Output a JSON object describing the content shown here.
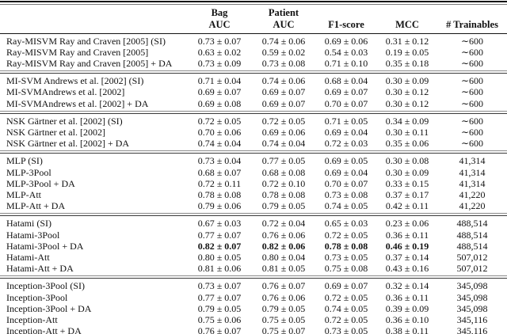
{
  "table": {
    "header": {
      "method_label": "",
      "columns": [
        {
          "line1": "Bag",
          "line2": "AUC"
        },
        {
          "line1": "Patient",
          "line2": "AUC"
        },
        {
          "line1": "",
          "line2": "F1-score"
        },
        {
          "line1": "",
          "line2": "MCC"
        },
        {
          "line1": "",
          "line2": "# Trainables"
        }
      ]
    },
    "groups": [
      {
        "rows": [
          {
            "method": "Ray-MISVM Ray and Craven [2005] (SI)",
            "bag_auc": "0.73 ± 0.07",
            "patient_auc": "0.74 ± 0.06",
            "f1": "0.69 ± 0.06",
            "mcc": "0.31 ± 0.12",
            "trainables": "∼600",
            "bold_metrics": false
          },
          {
            "method": "Ray-MISVM Ray and Craven [2005]",
            "bag_auc": "0.63 ± 0.02",
            "patient_auc": "0.59 ± 0.02",
            "f1": "0.54 ± 0.03",
            "mcc": "0.19 ± 0.05",
            "trainables": "∼600",
            "bold_metrics": false
          },
          {
            "method": "Ray-MISVM Ray and Craven [2005] + DA",
            "bag_auc": "0.73 ± 0.09",
            "patient_auc": "0.73 ± 0.08",
            "f1": "0.71 ± 0.10",
            "mcc": "0.35 ± 0.18",
            "trainables": "∼600",
            "bold_metrics": false
          }
        ]
      },
      {
        "rows": [
          {
            "method": "MI-SVM Andrews et al. [2002] (SI)",
            "bag_auc": "0.71 ± 0.04",
            "patient_auc": "0.74 ± 0.06",
            "f1": "0.68 ± 0.04",
            "mcc": "0.30 ± 0.09",
            "trainables": "∼600",
            "bold_metrics": false
          },
          {
            "method": "MI-SVMAndrews et al. [2002]",
            "bag_auc": "0.69 ± 0.07",
            "patient_auc": "0.69 ± 0.07",
            "f1": "0.69 ± 0.07",
            "mcc": "0.30 ± 0.12",
            "trainables": "∼600",
            "bold_metrics": false
          },
          {
            "method": "MI-SVMAndrews et al. [2002] + DA",
            "bag_auc": "0.69 ± 0.08",
            "patient_auc": "0.69 ± 0.07",
            "f1": "0.70 ± 0.07",
            "mcc": "0.30 ± 0.12",
            "trainables": "∼600",
            "bold_metrics": false
          }
        ]
      },
      {
        "rows": [
          {
            "method": "NSK Gärtner et al. [2002] (SI)",
            "bag_auc": "0.72 ± 0.05",
            "patient_auc": "0.72 ± 0.05",
            "f1": "0.71 ± 0.05",
            "mcc": "0.34 ± 0.09",
            "trainables": "∼600",
            "bold_metrics": false
          },
          {
            "method": "NSK Gärtner et al. [2002]",
            "bag_auc": "0.70 ± 0.06",
            "patient_auc": "0.69 ± 0.06",
            "f1": "0.69 ± 0.04",
            "mcc": "0.30 ± 0.11",
            "trainables": "∼600",
            "bold_metrics": false
          },
          {
            "method": "NSK Gärtner et al. [2002] + DA",
            "bag_auc": "0.74 ± 0.04",
            "patient_auc": "0.74 ± 0.04",
            "f1": "0.72 ± 0.03",
            "mcc": "0.35 ± 0.06",
            "trainables": "∼600",
            "bold_metrics": false
          }
        ]
      },
      {
        "rows": [
          {
            "method": "MLP (SI)",
            "bag_auc": "0.73 ± 0.04",
            "patient_auc": "0.77 ± 0.05",
            "f1": "0.69 ± 0.05",
            "mcc": "0.30 ± 0.08",
            "trainables": "41,314",
            "bold_metrics": false
          },
          {
            "method": "MLP-3Pool",
            "bag_auc": "0.68 ± 0.07",
            "patient_auc": "0.68 ± 0.08",
            "f1": "0.69 ± 0.04",
            "mcc": "0.30 ± 0.09",
            "trainables": "41,314",
            "bold_metrics": false
          },
          {
            "method": "MLP-3Pool + DA",
            "bag_auc": "0.72 ± 0.11",
            "patient_auc": "0.72 ± 0.10",
            "f1": "0.70 ± 0.07",
            "mcc": "0.33 ± 0.15",
            "trainables": "41,314",
            "bold_metrics": false
          },
          {
            "method": "MLP-Att",
            "bag_auc": "0.78 ± 0.08",
            "patient_auc": "0.78 ± 0.08",
            "f1": "0.73 ± 0.08",
            "mcc": "0.37 ± 0.17",
            "trainables": "41,220",
            "bold_metrics": false
          },
          {
            "method": "MLP-Att + DA",
            "bag_auc": "0.79 ± 0.06",
            "patient_auc": "0.79 ± 0.05",
            "f1": "0.74 ± 0.05",
            "mcc": "0.42 ± 0.11",
            "trainables": "41,220",
            "bold_metrics": false
          }
        ]
      },
      {
        "rows": [
          {
            "method": "Hatami (SI)",
            "bag_auc": "0.67 ± 0.03",
            "patient_auc": "0.72 ± 0.04",
            "f1": "0.65 ± 0.03",
            "mcc": "0.23 ± 0.06",
            "trainables": "488,514",
            "bold_metrics": false
          },
          {
            "method": "Hatami-3Pool",
            "bag_auc": "0.77 ± 0.07",
            "patient_auc": "0.76 ± 0.06",
            "f1": "0.72 ± 0.05",
            "mcc": "0.36 ± 0.11",
            "trainables": "488,514",
            "bold_metrics": false
          },
          {
            "method": "Hatami-3Pool + DA",
            "bag_auc": "0.82 ± 0.07",
            "patient_auc": "0.82 ± 0.06",
            "f1": "0.78 ± 0.08",
            "mcc": "0.46 ± 0.19",
            "trainables": "488,514",
            "bold_metrics": true
          },
          {
            "method": "Hatami-Att",
            "bag_auc": "0.80 ± 0.05",
            "patient_auc": "0.80 ± 0.04",
            "f1": "0.73 ± 0.05",
            "mcc": "0.37 ± 0.14",
            "trainables": "507,012",
            "bold_metrics": false
          },
          {
            "method": "Hatami-Att + DA",
            "bag_auc": "0.81 ± 0.06",
            "patient_auc": "0.81 ± 0.05",
            "f1": "0.75 ± 0.08",
            "mcc": "0.43 ± 0.16",
            "trainables": "507,012",
            "bold_metrics": false
          }
        ]
      },
      {
        "rows": [
          {
            "method": "Inception-3Pool (SI)",
            "bag_auc": "0.73 ± 0.07",
            "patient_auc": "0.76 ± 0.07",
            "f1": "0.69 ± 0.07",
            "mcc": "0.32 ± 0.14",
            "trainables": "345,098",
            "bold_metrics": false
          },
          {
            "method": "Inception-3Pool",
            "bag_auc": "0.77 ± 0.07",
            "patient_auc": "0.76 ± 0.06",
            "f1": "0.72 ± 0.05",
            "mcc": "0.36 ± 0.11",
            "trainables": "345,098",
            "bold_metrics": false
          },
          {
            "method": "Inception-3Pool + DA",
            "bag_auc": "0.79 ± 0.05",
            "patient_auc": "0.79 ± 0.05",
            "f1": "0.74 ± 0.05",
            "mcc": "0.39 ± 0.09",
            "trainables": "345,098",
            "bold_metrics": false
          },
          {
            "method": "Inception-Att",
            "bag_auc": "0.75 ± 0.06",
            "patient_auc": "0.75 ± 0.05",
            "f1": "0.72 ± 0.05",
            "mcc": "0.36 ± 0.10",
            "trainables": "345,116",
            "bold_metrics": false
          },
          {
            "method": "Inception-Att + DA",
            "bag_auc": "0.76 ± 0.07",
            "patient_auc": "0.75 ± 0.07",
            "f1": "0.73 ± 0.05",
            "mcc": "0.38 ± 0.11",
            "trainables": "345,116",
            "bold_metrics": false
          }
        ]
      }
    ]
  },
  "colors": {
    "text": "#111111",
    "rule_heavy": "#111111",
    "rule_light": "#8a8a8a",
    "background": "#ffffff"
  }
}
